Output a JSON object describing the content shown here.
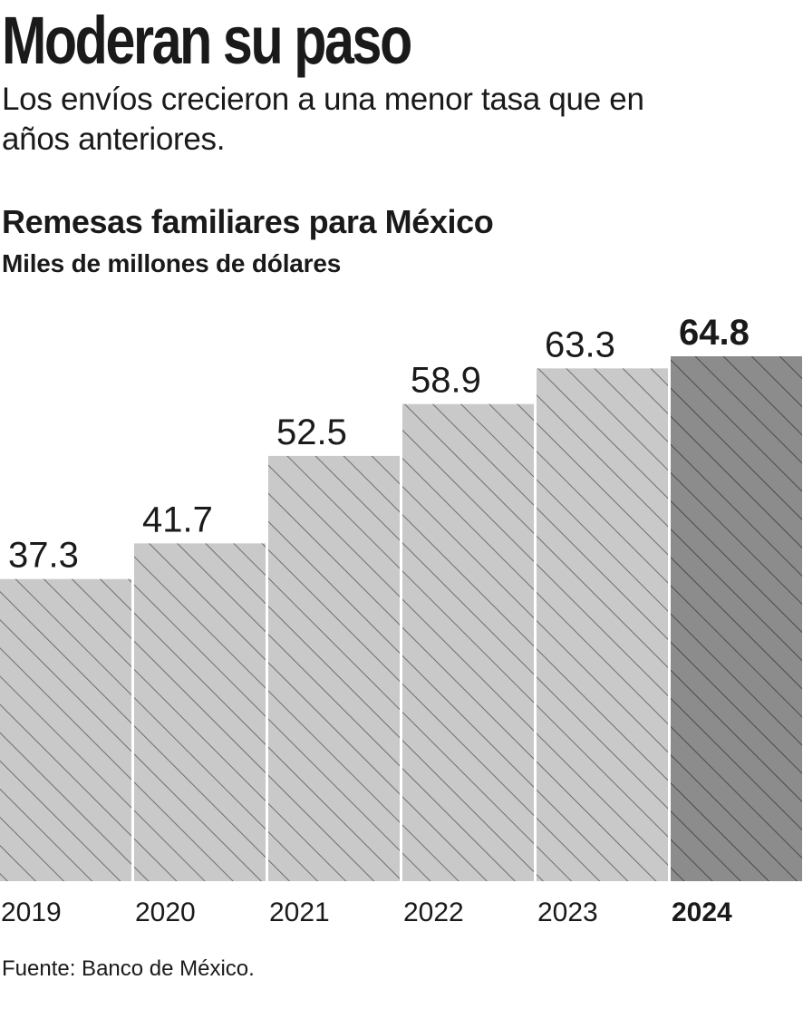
{
  "headline": "Moderan su paso",
  "deck": "Los envíos crecieron a una menor tasa que en años anteriores.",
  "source": "Fuente: Banco de México.",
  "colors": {
    "bar_fill": "#c9c9c9",
    "bar_highlight": "#8c8c8c",
    "hatch": "#6e6e6e",
    "hatch_highlight": "#4a4a4a",
    "text": "#1a1a1a"
  },
  "chart_data": {
    "type": "bar",
    "title": "Remesas familiares para México",
    "subtitle": "Miles de millones de dólares",
    "categories": [
      "2019",
      "2020",
      "2021",
      "2022",
      "2023",
      "2024"
    ],
    "values": [
      37.3,
      41.7,
      52.5,
      58.9,
      63.3,
      64.8
    ],
    "value_labels": [
      "37.3",
      "41.7",
      "52.5",
      "58.9",
      "63.3",
      "64.8"
    ],
    "highlight_index": 5,
    "ylim": [
      0,
      64.8
    ],
    "grid": false,
    "legend": "none"
  }
}
